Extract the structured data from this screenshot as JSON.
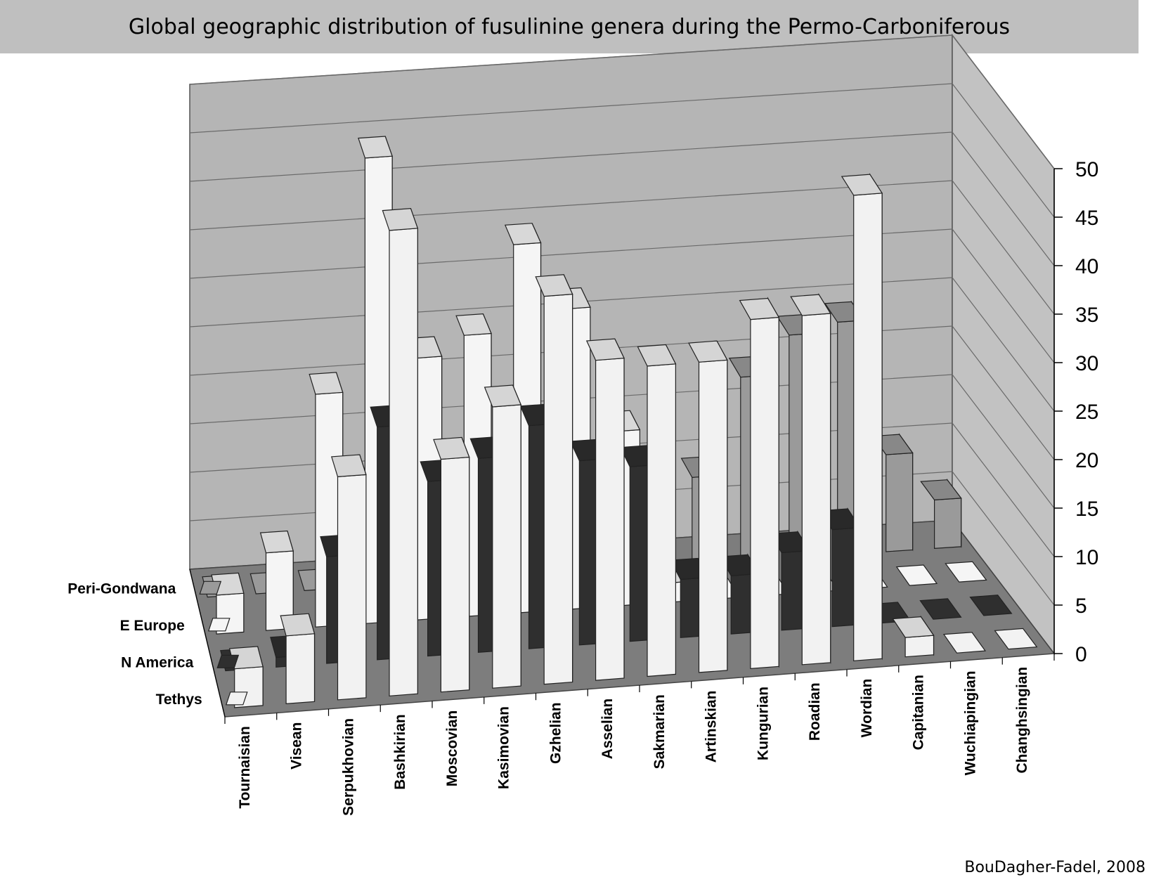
{
  "chart_data": {
    "type": "bar",
    "subtype": "3d-grouped",
    "title": "Global geographic distribution of fusulinine genera during the Permo-Carboniferous",
    "categories": [
      "Tournaisian",
      "Visean",
      "Serpukhovian",
      "Bashkirian",
      "Moscovian",
      "Kasimovian",
      "Gzhelian",
      "Asselian",
      "Sakmarian",
      "Artinskian",
      "Kungurian",
      "Roadian",
      "Wordian",
      "Capitanian",
      "Wuchiapingian",
      "Changhsingian"
    ],
    "series": [
      {
        "name": "Tethys",
        "color": "#f2f2f2",
        "values": [
          4,
          7,
          23,
          48,
          24,
          29,
          40,
          33,
          32,
          32,
          36,
          36,
          48,
          2,
          0,
          0
        ]
      },
      {
        "name": "N America",
        "color": "#2f2f2f",
        "values": [
          0,
          1,
          11,
          24,
          18,
          20,
          23,
          19,
          18,
          6,
          6,
          8,
          10,
          0,
          0,
          0
        ]
      },
      {
        "name": "E Europe",
        "color": "#f5f5f5",
        "values": [
          4,
          8,
          24,
          48,
          27,
          29,
          38,
          31,
          18,
          2,
          0,
          0,
          0,
          0,
          0,
          0
        ]
      },
      {
        "name": "Peri-Gondwana",
        "color": "#9a9a9a",
        "values": [
          0,
          0,
          0,
          0,
          0,
          0,
          0,
          0,
          7,
          9,
          9,
          19,
          23,
          24,
          10,
          5
        ]
      }
    ],
    "ylim": [
      0,
      50
    ],
    "yticks": [
      0,
      5,
      10,
      15,
      20,
      25,
      30,
      35,
      40,
      45,
      50
    ],
    "legend_position": "left",
    "grid": true
  },
  "credit": "BouDagher-Fadel, 2008"
}
